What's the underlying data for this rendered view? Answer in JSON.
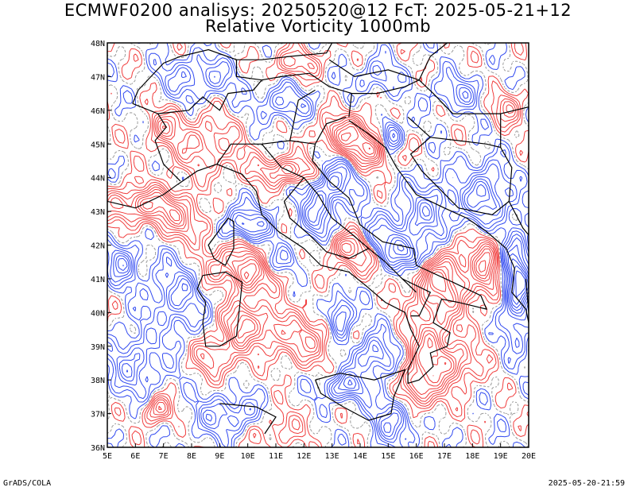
{
  "header": {
    "title_line1": "ECMWF0200 analisys: 20250520@12 FcT: 2025-05-21+12",
    "title_line2": "Relative Vorticity 1000mb"
  },
  "map": {
    "projection": "lat-lon",
    "lon_range": [
      5,
      20
    ],
    "lat_range": [
      36,
      48
    ],
    "lon_labels": [
      "5E",
      "6E",
      "7E",
      "8E",
      "9E",
      "10E",
      "11E",
      "12E",
      "13E",
      "14E",
      "15E",
      "16E",
      "17E",
      "18E",
      "19E",
      "20E"
    ],
    "lat_labels": [
      "36N",
      "37N",
      "38N",
      "39N",
      "40N",
      "41N",
      "42N",
      "43N",
      "44N",
      "45N",
      "46N",
      "47N",
      "48N"
    ],
    "contour_colors": {
      "positive": "#f03c3c",
      "negative": "#2f48f0",
      "zero": "#9a9a9a"
    },
    "coastline_color": "#000000"
  },
  "footer": {
    "left": "GrADS/COLA",
    "right": "2025-05-20-21:59"
  }
}
